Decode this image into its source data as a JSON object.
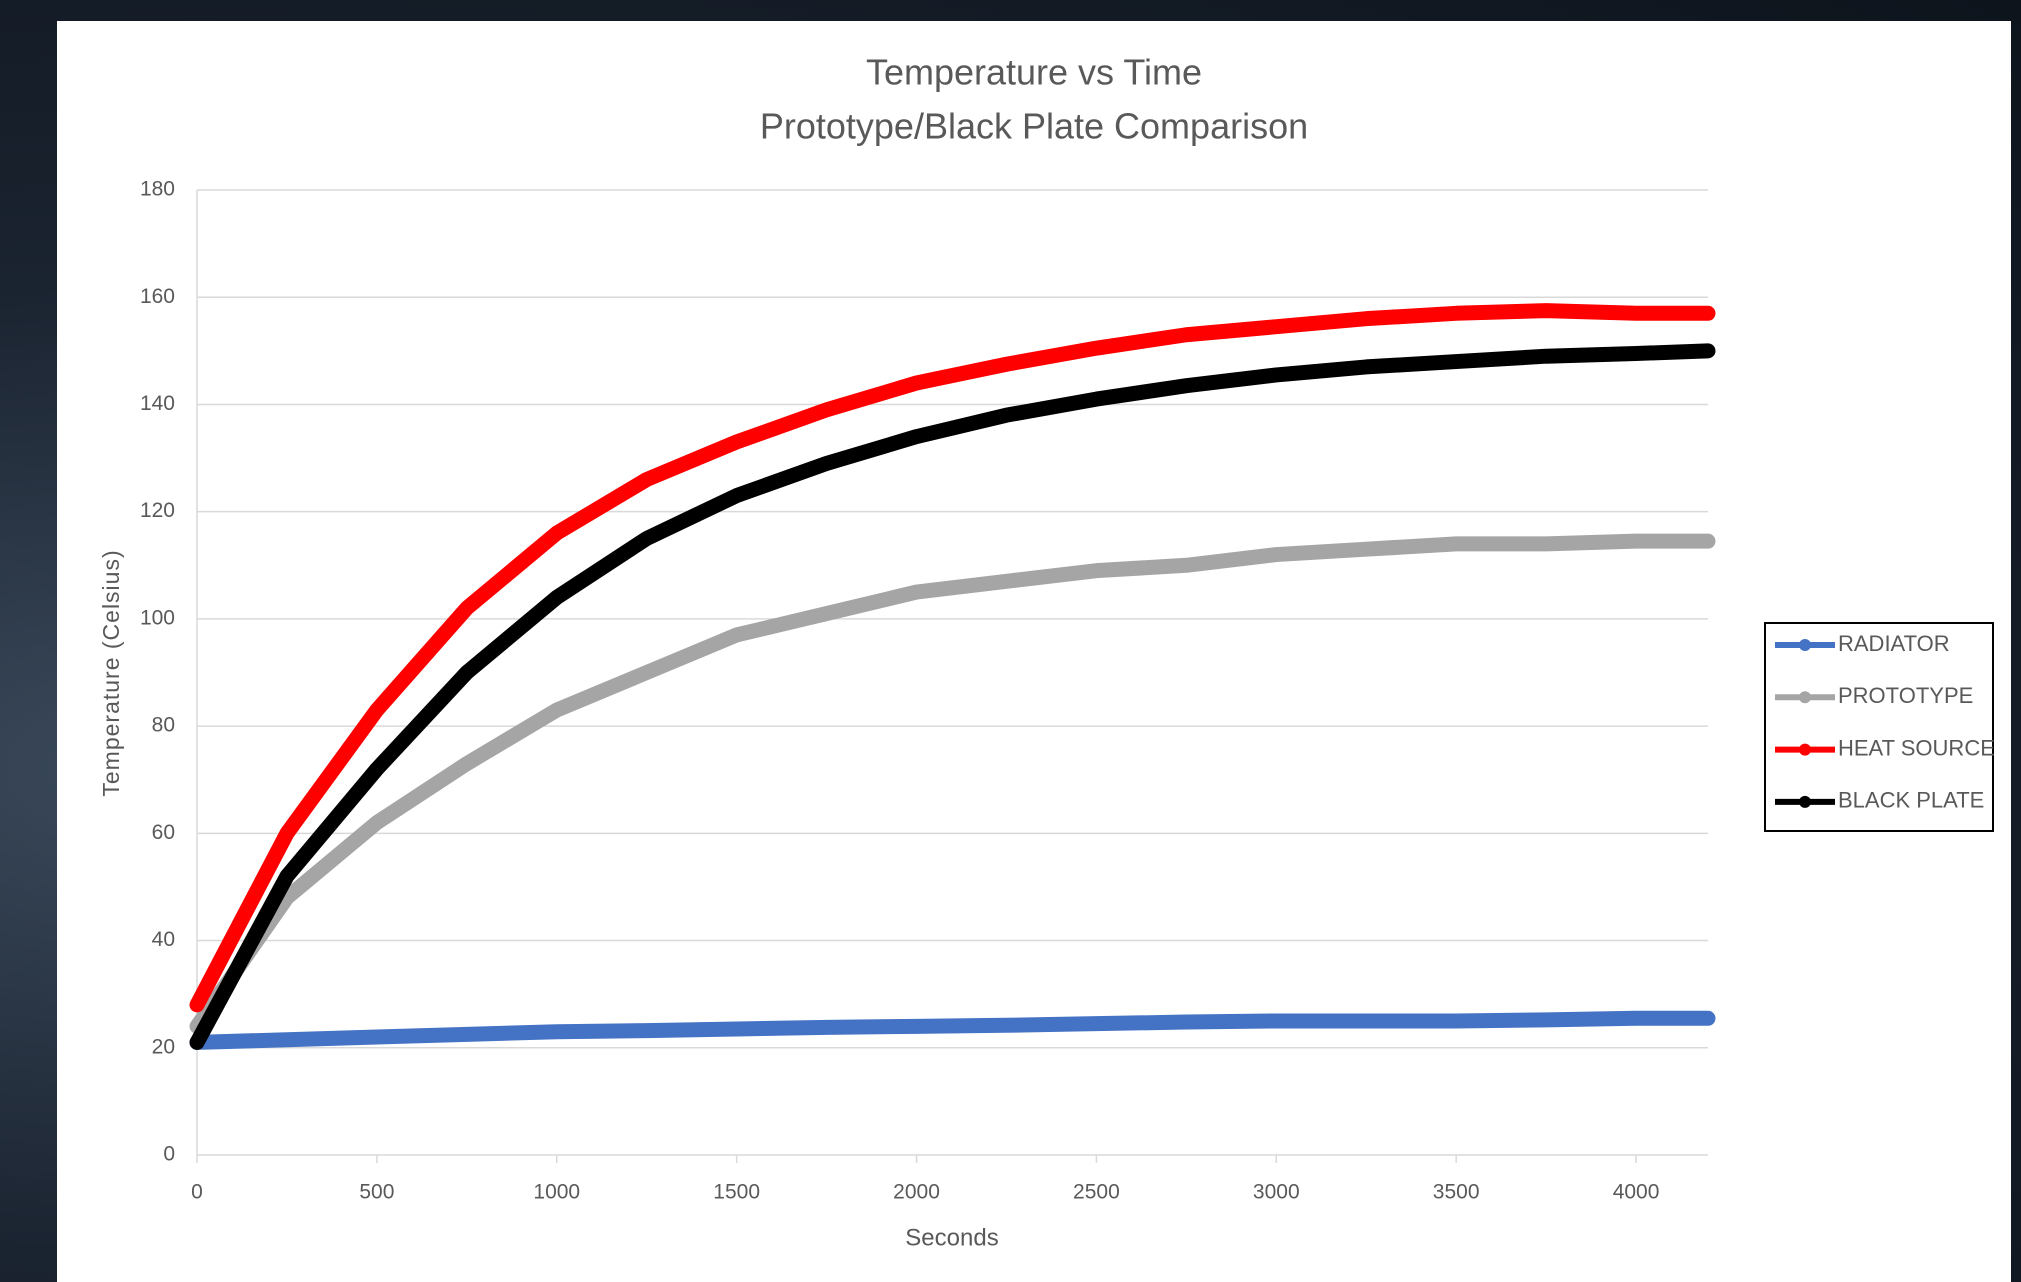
{
  "chart_data": {
    "type": "line",
    "title": "Temperature vs Time",
    "subtitle": "Prototype/Black Plate Comparison",
    "x_label": "Seconds",
    "y_label": "Temperature  (Celsius)",
    "x": [
      0,
      250,
      500,
      750,
      1000,
      1250,
      1500,
      1750,
      2000,
      2250,
      2500,
      2750,
      3000,
      3250,
      3500,
      3750,
      4000,
      4200
    ],
    "series": [
      {
        "name": "RADIATOR",
        "color": "#4472c4",
        "values": [
          21,
          21.5,
          22,
          22.5,
          23,
          23.2,
          23.5,
          23.8,
          24,
          24.2,
          24.5,
          24.8,
          25,
          25,
          25,
          25.2,
          25.5,
          25.5
        ]
      },
      {
        "name": "PROTOTYPE",
        "color": "#a5a5a5",
        "values": [
          24,
          48,
          62,
          73,
          83,
          90,
          97,
          101,
          105,
          107,
          109,
          110,
          112,
          113,
          114,
          114,
          114.5,
          114.5
        ]
      },
      {
        "name": "HEAT SOURCE",
        "color": "#ff0000",
        "values": [
          28,
          60,
          83,
          102,
          116,
          126,
          133,
          139,
          144,
          147.5,
          150.5,
          153,
          154.5,
          156,
          157,
          157.5,
          157,
          157
        ]
      },
      {
        "name": "BLACK PLATE",
        "color": "#000000",
        "values": [
          21,
          52,
          72,
          90,
          104,
          115,
          123,
          129,
          134,
          138,
          141,
          143.5,
          145.5,
          147,
          148,
          149,
          149.5,
          150
        ]
      }
    ],
    "xlim": [
      0,
      4200
    ],
    "xticks": [
      0,
      500,
      1000,
      1500,
      2000,
      2500,
      3000,
      3500,
      4000
    ],
    "ylim": [
      0,
      180
    ],
    "yticks": [
      0,
      20,
      40,
      60,
      80,
      100,
      120,
      140,
      160,
      180
    ],
    "grid": true,
    "legend": "right"
  }
}
